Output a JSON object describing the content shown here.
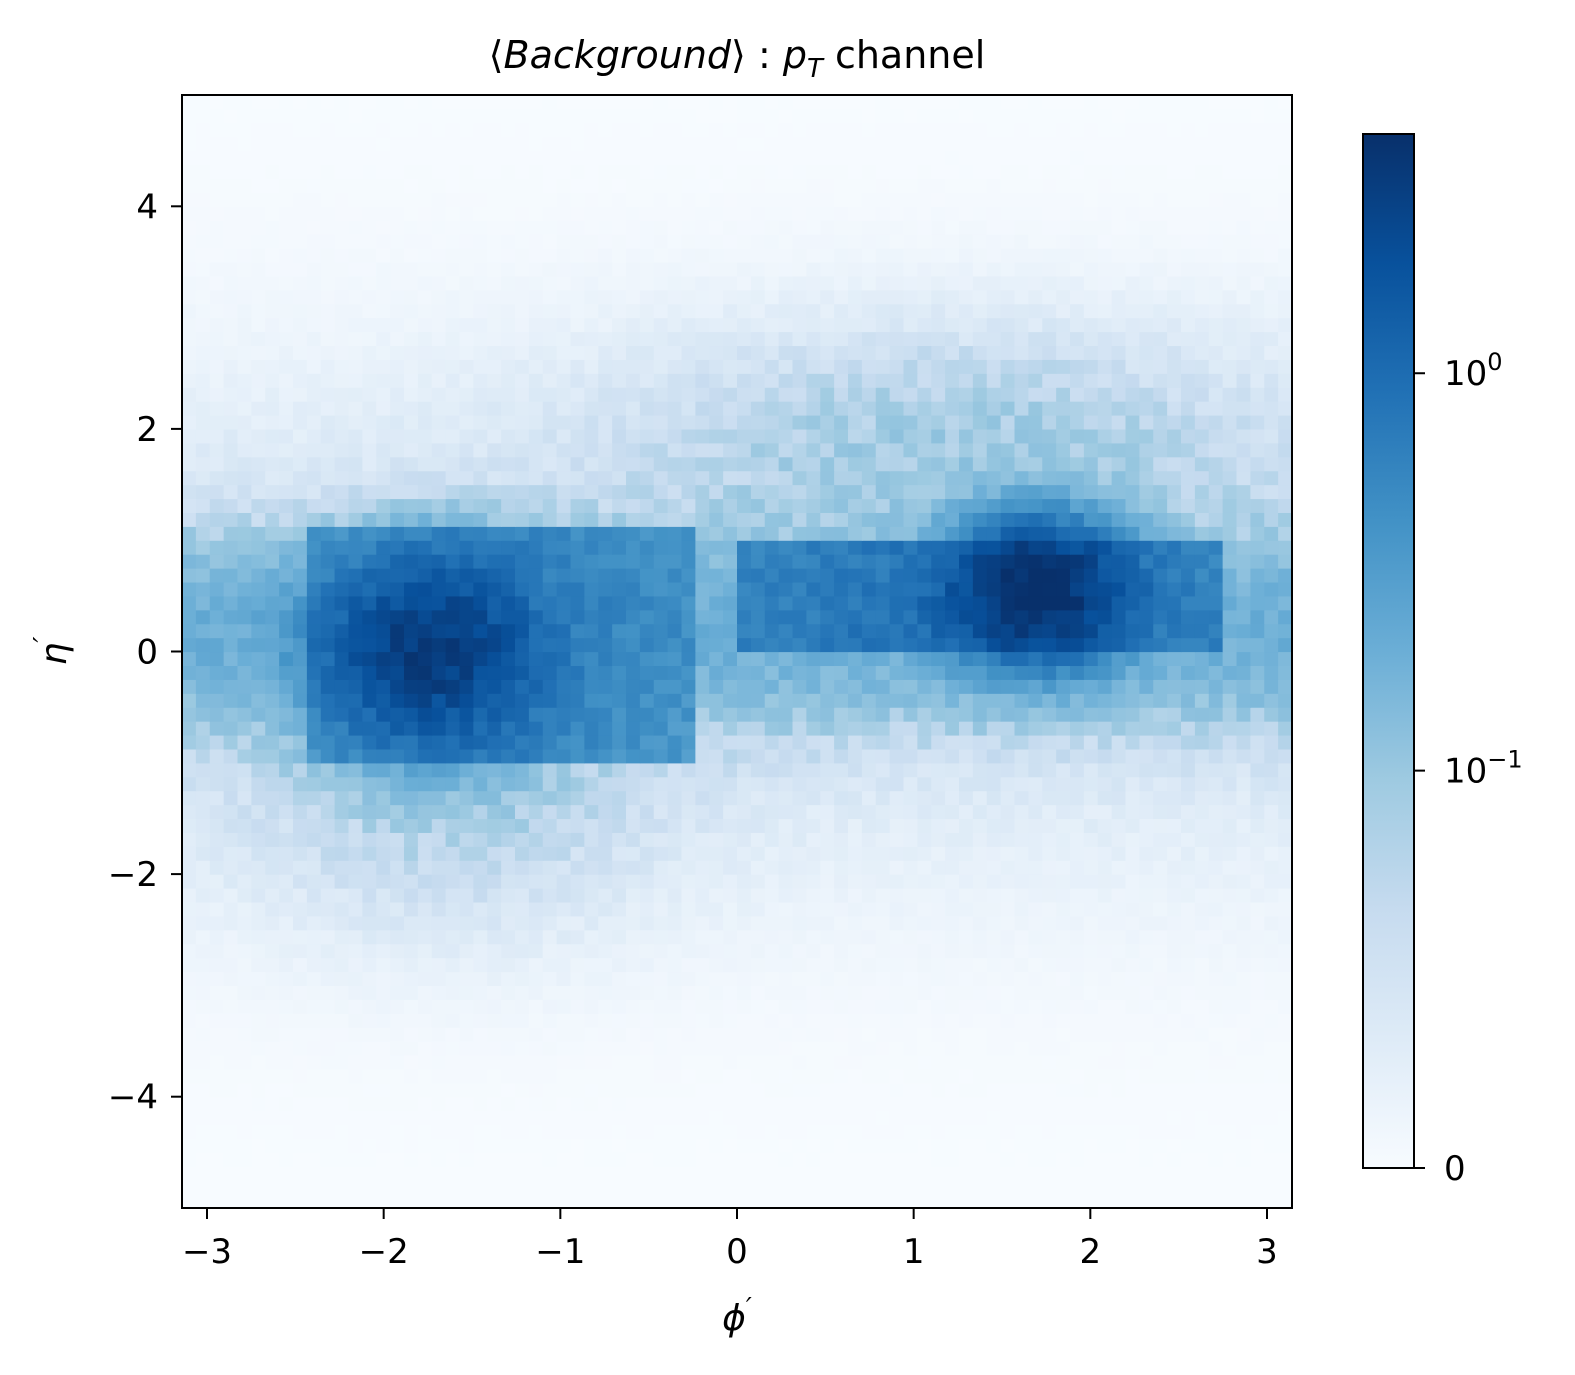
{
  "chart_data": {
    "type": "heatmap",
    "title": {
      "open": "⟨",
      "italic": "Background",
      "close": "⟩ : ",
      "var": "p",
      "sub": "T",
      "rest": " channel"
    },
    "xlabel": {
      "sym": "ϕ",
      "prime": "′"
    },
    "ylabel": {
      "sym": "η",
      "prime": "′"
    },
    "xlim": [
      -3.14159,
      3.14159
    ],
    "ylim": [
      -5,
      5
    ],
    "xticks": [
      {
        "value": -3,
        "label": "−3"
      },
      {
        "value": -2,
        "label": "−2"
      },
      {
        "value": -1,
        "label": "−1"
      },
      {
        "value": 0,
        "label": "0"
      },
      {
        "value": 1,
        "label": "1"
      },
      {
        "value": 2,
        "label": "2"
      },
      {
        "value": 3,
        "label": "3"
      }
    ],
    "yticks": [
      {
        "value": -4,
        "label": "−4"
      },
      {
        "value": -2,
        "label": "−2"
      },
      {
        "value": 0,
        "label": "0"
      },
      {
        "value": 2,
        "label": "2"
      },
      {
        "value": 4,
        "label": "4"
      }
    ],
    "colorbar": {
      "scale": "symlog",
      "range": [
        0,
        4
      ],
      "colormap": "Blues",
      "ticks": [
        {
          "value": 0,
          "label": "0",
          "base": "0",
          "exp": ""
        },
        {
          "value": 0.1,
          "label": "10^-1",
          "base": "10",
          "exp": "−1"
        },
        {
          "value": 1,
          "label": "10^0",
          "base": "10",
          "exp": "0"
        }
      ]
    },
    "grid": false,
    "bins": {
      "nx": 80,
      "ny": 80
    },
    "components": [
      {
        "description": "left hot spot",
        "phi": -1.75,
        "eta": 0.0,
        "sigma_phi": 0.33,
        "sigma_eta": 0.45,
        "peak": 2.6
      },
      {
        "description": "left box",
        "phi_range": [
          -2.45,
          -0.25
        ],
        "eta_range": [
          -1.0,
          1.1
        ],
        "level": 0.5
      },
      {
        "description": "right band",
        "phi_range": [
          0.0,
          2.75
        ],
        "eta_range": [
          0.0,
          1.05
        ],
        "level": 0.75
      },
      {
        "description": "right hot spot",
        "phi": 1.7,
        "eta": 0.55,
        "sigma_phi": 0.28,
        "sigma_eta": 0.35,
        "peak": 3.5
      }
    ],
    "colors": {
      "cmap_min": "#f7fbff",
      "cmap_max": "#08306b"
    }
  }
}
